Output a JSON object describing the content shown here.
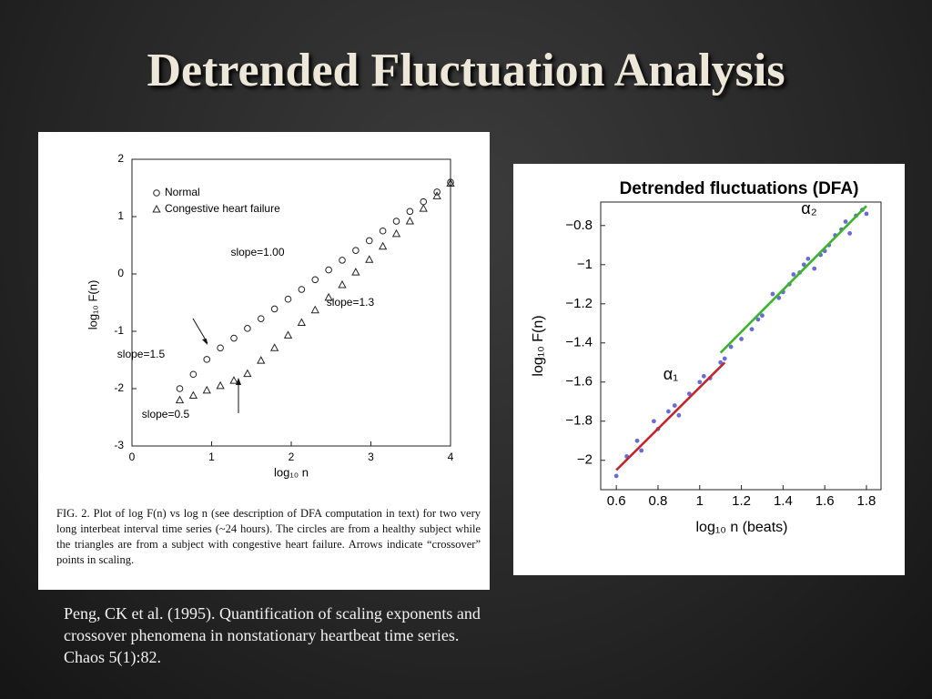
{
  "title": "Detrended Fluctuation Analysis",
  "citation": "Peng, CK  et al. (1995). Quantification of scaling exponents and crossover phenomena in nonstationary heartbeat time series. Chaos 5(1):82.",
  "chart_data": [
    {
      "type": "scatter",
      "x_label": "log₁₀ n",
      "y_label": "log₁₀ F(n)",
      "caption": "FIG. 2. Plot of log F(n) vs log n (see description of DFA computation in text) for two very long interbeat interval time series (~24 hours). The circles are from a healthy subject while the triangles are from a subject with congestive heart failure. Arrows indicate “crossover” points in scaling.",
      "annotations": [
        "slope=1.00",
        "slope=1.3",
        "slope=1.5",
        "slope=0.5"
      ],
      "xlim": [
        0,
        4
      ],
      "ylim": [
        -3,
        2
      ],
      "xticks": [
        0,
        1,
        2,
        3,
        4
      ],
      "yticks": [
        -3,
        -2,
        -1,
        0,
        1,
        2
      ],
      "series": [
        {
          "name": "Normal",
          "marker": "circle",
          "color": "#222222",
          "x": [
            0.6,
            0.77,
            0.94,
            1.11,
            1.28,
            1.45,
            1.62,
            1.79,
            1.96,
            2.13,
            2.3,
            2.47,
            2.64,
            2.81,
            2.98,
            3.15,
            3.32,
            3.49,
            3.66,
            3.83,
            4.0
          ],
          "values": [
            -2.0,
            -1.75,
            -1.49,
            -1.29,
            -1.12,
            -0.95,
            -0.78,
            -0.61,
            -0.44,
            -0.27,
            -0.1,
            0.07,
            0.24,
            0.41,
            0.58,
            0.75,
            0.92,
            1.09,
            1.26,
            1.43,
            1.6
          ]
        },
        {
          "name": "Congestive heart failure",
          "marker": "triangle",
          "color": "#222222",
          "x": [
            0.6,
            0.77,
            0.94,
            1.11,
            1.28,
            1.45,
            1.62,
            1.79,
            1.96,
            2.13,
            2.3,
            2.47,
            2.64,
            2.81,
            2.98,
            3.15,
            3.32,
            3.49,
            3.66,
            3.83,
            4.0
          ],
          "values": [
            -2.2,
            -2.12,
            -2.03,
            -1.95,
            -1.86,
            -1.74,
            -1.51,
            -1.29,
            -1.07,
            -0.85,
            -0.63,
            -0.41,
            -0.19,
            0.03,
            0.25,
            0.48,
            0.7,
            0.92,
            1.14,
            1.36,
            1.58
          ]
        }
      ]
    },
    {
      "type": "scatter",
      "title": "Detrended fluctuations (DFA)",
      "x_label": "log₁₀ n (beats)",
      "y_label": "log₁₀ F(n)",
      "annotations": [
        "α₂",
        "α₁"
      ],
      "xlim": [
        0.525,
        1.87
      ],
      "ylim": [
        -2.15,
        -0.68
      ],
      "xticks": [
        0.6,
        0.8,
        1,
        1.2,
        1.4,
        1.6,
        1.8
      ],
      "yticks": [
        {
          "value": -2,
          "label": "−2"
        },
        {
          "value": -1.8,
          "label": "−1.8"
        },
        {
          "value": -1.6,
          "label": "−1.6"
        },
        {
          "value": -1.4,
          "label": "−1.4"
        },
        {
          "value": -1.2,
          "label": "−1.2"
        },
        {
          "value": -1,
          "label": "−1"
        },
        {
          "value": -0.8,
          "label": "−0.8"
        }
      ],
      "series": [
        {
          "marker": "dot",
          "color": "#6b6bd8",
          "x": [
            0.6,
            0.65,
            0.7,
            0.72,
            0.78,
            0.8,
            0.85,
            0.88,
            0.9,
            0.95,
            1.0,
            1.02,
            1.05,
            1.1,
            1.12,
            1.15,
            1.2,
            1.25,
            1.28,
            1.3,
            1.35,
            1.38,
            1.4,
            1.43,
            1.45,
            1.48,
            1.5,
            1.52,
            1.55,
            1.58,
            1.6,
            1.62,
            1.65,
            1.68,
            1.7,
            1.72,
            1.75,
            1.78,
            1.8
          ],
          "values": [
            -2.08,
            -1.98,
            -1.9,
            -1.95,
            -1.8,
            -1.84,
            -1.75,
            -1.72,
            -1.77,
            -1.66,
            -1.6,
            -1.57,
            -1.58,
            -1.5,
            -1.48,
            -1.42,
            -1.38,
            -1.33,
            -1.28,
            -1.26,
            -1.15,
            -1.17,
            -1.14,
            -1.1,
            -1.05,
            -1.04,
            -1.0,
            -0.97,
            -1.02,
            -0.95,
            -0.93,
            -0.9,
            -0.85,
            -0.82,
            -0.78,
            -0.84,
            -0.75,
            -0.72,
            -0.74
          ]
        },
        {
          "marker": "line",
          "color": "#c0262c",
          "x": [
            0.6,
            1.12
          ],
          "values": [
            -2.05,
            -1.5
          ]
        },
        {
          "marker": "line",
          "color": "#3ab52a",
          "x": [
            1.1,
            1.8
          ],
          "values": [
            -1.45,
            -0.7
          ]
        }
      ]
    }
  ]
}
